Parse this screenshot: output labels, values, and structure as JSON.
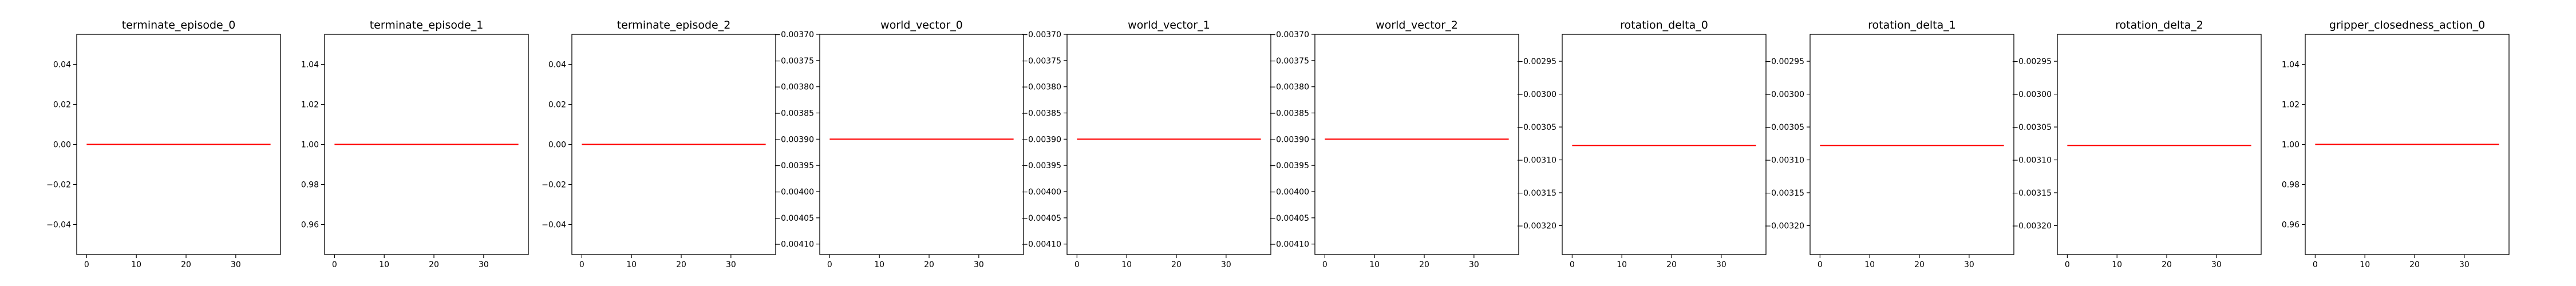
{
  "chart_data": [
    {
      "type": "line",
      "title": "terminate_episode_0",
      "x": [
        0,
        37
      ],
      "y": [
        0.0,
        0.0
      ],
      "xlim": [
        -2,
        39
      ],
      "ylim": [
        -0.055,
        0.055
      ],
      "xticks": [
        "0",
        "10",
        "20",
        "30"
      ],
      "yticks": [
        "0.04",
        "0.02",
        "0.00",
        "−0.02",
        "−0.04"
      ],
      "yticks_values": [
        0.04,
        0.02,
        0.0,
        -0.02,
        -0.04
      ],
      "color": "#ff0000"
    },
    {
      "type": "line",
      "title": "terminate_episode_1",
      "x": [
        0,
        37
      ],
      "y": [
        1.0,
        1.0
      ],
      "xlim": [
        -2,
        39
      ],
      "ylim": [
        0.945,
        1.055
      ],
      "xticks": [
        "0",
        "10",
        "20",
        "30"
      ],
      "yticks": [
        "1.04",
        "1.02",
        "1.00",
        "0.98",
        "0.96"
      ],
      "yticks_values": [
        1.04,
        1.02,
        1.0,
        0.98,
        0.96
      ],
      "color": "#ff0000"
    },
    {
      "type": "line",
      "title": "terminate_episode_2",
      "x": [
        0,
        37
      ],
      "y": [
        0.0,
        0.0
      ],
      "xlim": [
        -2,
        39
      ],
      "ylim": [
        -0.055,
        0.055
      ],
      "xticks": [
        "0",
        "10",
        "20",
        "30"
      ],
      "yticks": [
        "0.04",
        "0.02",
        "0.00",
        "−0.02",
        "−0.04"
      ],
      "yticks_values": [
        0.04,
        0.02,
        0.0,
        -0.02,
        -0.04
      ],
      "color": "#ff0000"
    },
    {
      "type": "line",
      "title": "world_vector_0",
      "x": [
        0,
        37
      ],
      "y": [
        -0.0039,
        -0.0039
      ],
      "xlim": [
        -2,
        39
      ],
      "ylim": [
        -0.00412,
        -0.0037
      ],
      "xticks": [
        "0",
        "10",
        "20",
        "30"
      ],
      "yticks": [
        "−0.00370",
        "−0.00375",
        "−0.00380",
        "−0.00385",
        "−0.00390",
        "−0.00395",
        "−0.00400",
        "−0.00405",
        "−0.00410"
      ],
      "yticks_values": [
        -0.0037,
        -0.00375,
        -0.0038,
        -0.00385,
        -0.0039,
        -0.00395,
        -0.004,
        -0.00405,
        -0.0041
      ],
      "color": "#ff0000"
    },
    {
      "type": "line",
      "title": "world_vector_1",
      "x": [
        0,
        37
      ],
      "y": [
        -0.0039,
        -0.0039
      ],
      "xlim": [
        -2,
        39
      ],
      "ylim": [
        -0.00412,
        -0.0037
      ],
      "xticks": [
        "0",
        "10",
        "20",
        "30"
      ],
      "yticks": [
        "−0.00370",
        "−0.00375",
        "−0.00380",
        "−0.00385",
        "−0.00390",
        "−0.00395",
        "−0.00400",
        "−0.00405",
        "−0.00410"
      ],
      "yticks_values": [
        -0.0037,
        -0.00375,
        -0.0038,
        -0.00385,
        -0.0039,
        -0.00395,
        -0.004,
        -0.00405,
        -0.0041
      ],
      "color": "#ff0000"
    },
    {
      "type": "line",
      "title": "world_vector_2",
      "x": [
        0,
        37
      ],
      "y": [
        -0.0039,
        -0.0039
      ],
      "xlim": [
        -2,
        39
      ],
      "ylim": [
        -0.00412,
        -0.0037
      ],
      "xticks": [
        "0",
        "10",
        "20",
        "30"
      ],
      "yticks": [
        "−0.00370",
        "−0.00375",
        "−0.00380",
        "−0.00385",
        "−0.00390",
        "−0.00395",
        "−0.00400",
        "−0.00405",
        "−0.00410"
      ],
      "yticks_values": [
        -0.0037,
        -0.00375,
        -0.0038,
        -0.00385,
        -0.0039,
        -0.00395,
        -0.004,
        -0.00405,
        -0.0041
      ],
      "color": "#ff0000"
    },
    {
      "type": "line",
      "title": "rotation_delta_0",
      "x": [
        0,
        37
      ],
      "y": [
        -0.003078,
        -0.003078
      ],
      "xlim": [
        -2,
        39
      ],
      "ylim": [
        -0.003244,
        -0.002909
      ],
      "xticks": [
        "0",
        "10",
        "20",
        "30"
      ],
      "yticks": [
        "−0.00295",
        "−0.00300",
        "−0.00305",
        "−0.00310",
        "−0.00315",
        "−0.00320"
      ],
      "yticks_values": [
        -0.00295,
        -0.003,
        -0.00305,
        -0.0031,
        -0.00315,
        -0.0032
      ],
      "color": "#ff0000"
    },
    {
      "type": "line",
      "title": "rotation_delta_1",
      "x": [
        0,
        37
      ],
      "y": [
        -0.003078,
        -0.003078
      ],
      "xlim": [
        -2,
        39
      ],
      "ylim": [
        -0.003244,
        -0.002909
      ],
      "xticks": [
        "0",
        "10",
        "20",
        "30"
      ],
      "yticks": [
        "−0.00295",
        "−0.00300",
        "−0.00305",
        "−0.00310",
        "−0.00315",
        "−0.00320"
      ],
      "yticks_values": [
        -0.00295,
        -0.003,
        -0.00305,
        -0.0031,
        -0.00315,
        -0.0032
      ],
      "color": "#ff0000"
    },
    {
      "type": "line",
      "title": "rotation_delta_2",
      "x": [
        0,
        37
      ],
      "y": [
        -0.003078,
        -0.003078
      ],
      "xlim": [
        -2,
        39
      ],
      "ylim": [
        -0.003244,
        -0.002909
      ],
      "xticks": [
        "0",
        "10",
        "20",
        "30"
      ],
      "yticks": [
        "−0.00295",
        "−0.00300",
        "−0.00305",
        "−0.00310",
        "−0.00315",
        "−0.00320"
      ],
      "yticks_values": [
        -0.00295,
        -0.003,
        -0.00305,
        -0.0031,
        -0.00315,
        -0.0032
      ],
      "color": "#ff0000"
    },
    {
      "type": "line",
      "title": "gripper_closedness_action_0",
      "x": [
        0,
        37
      ],
      "y": [
        1.0,
        1.0
      ],
      "xlim": [
        -2,
        39
      ],
      "ylim": [
        0.945,
        1.055
      ],
      "xticks": [
        "0",
        "10",
        "20",
        "30"
      ],
      "yticks": [
        "1.04",
        "1.02",
        "1.00",
        "0.98",
        "0.96"
      ],
      "yticks_values": [
        1.04,
        1.02,
        1.0,
        0.98,
        0.96
      ],
      "color": "#ff0000"
    }
  ]
}
